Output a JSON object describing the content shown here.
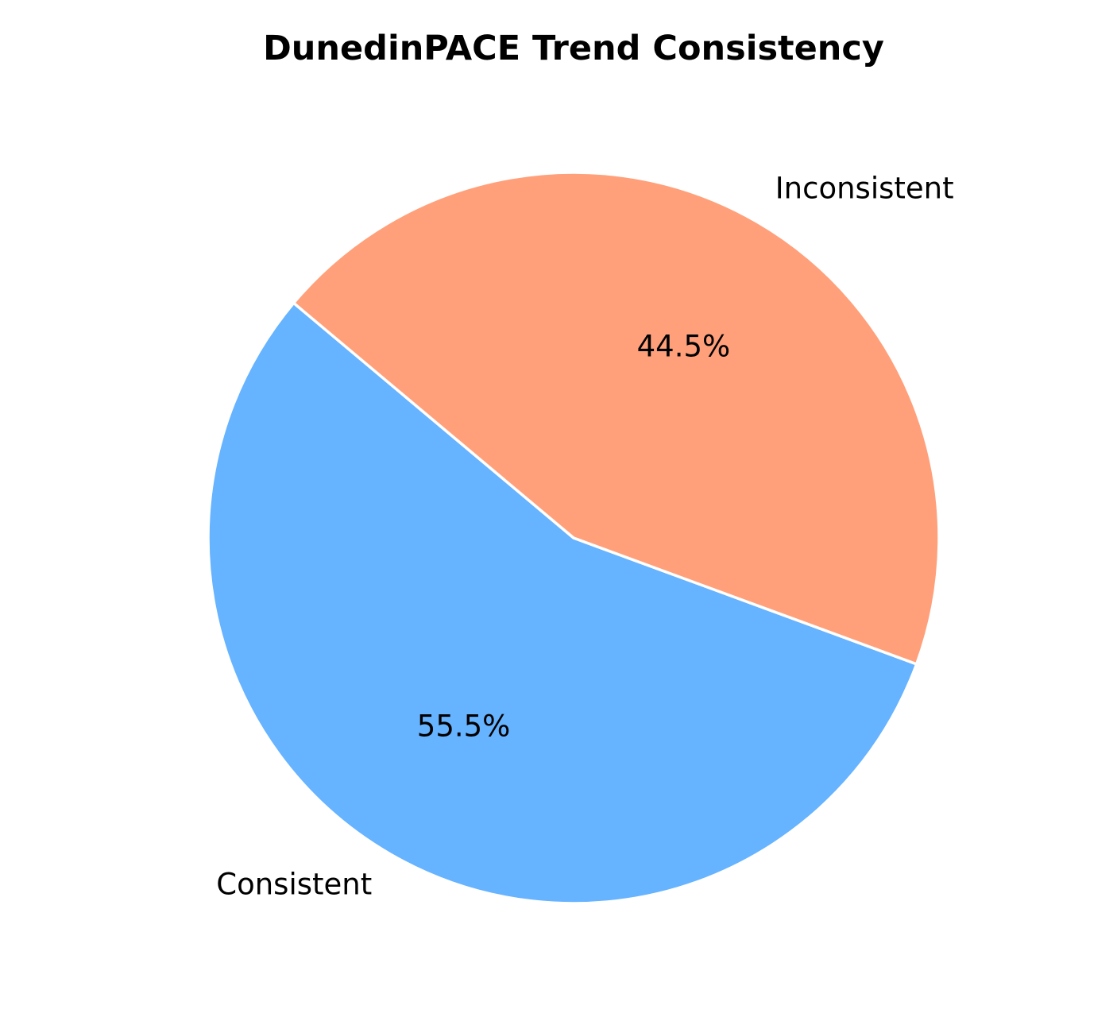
{
  "chart_data": {
    "type": "pie",
    "title": "DunedinPACE Trend Consistency",
    "slices": [
      {
        "label": "Consistent",
        "value": 55.5,
        "pct_label": "55.5%",
        "color": "#66b3ff"
      },
      {
        "label": "Inconsistent",
        "value": 44.5,
        "pct_label": "44.5%",
        "color": "#ffa07a"
      }
    ],
    "edge_color": "#ffffff"
  }
}
